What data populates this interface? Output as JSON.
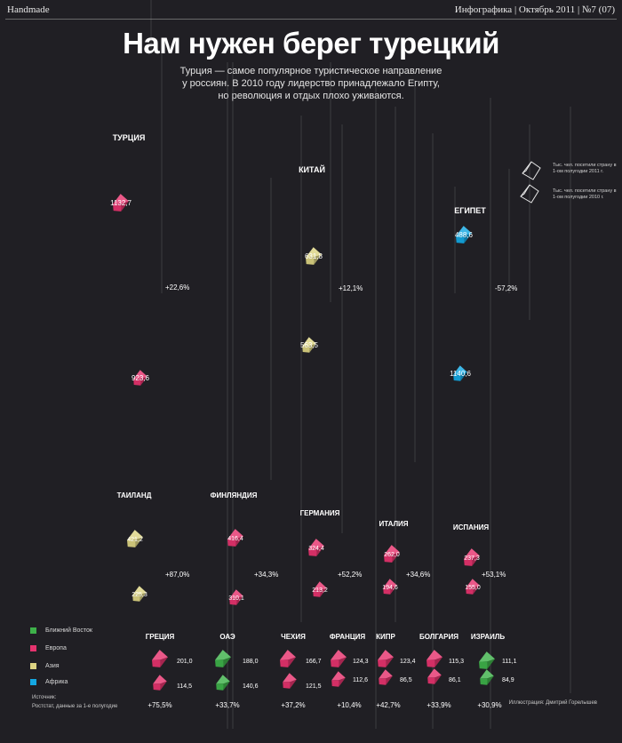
{
  "header": {
    "left": "Handmade",
    "right": "Инфографика | Октябрь 2011 | №7 (07)"
  },
  "title": "Нам нужен берег турецкий",
  "subtitle": "Турция — самое популярное туристическое направление у россиян. В 2010 году лидерство принадлежало Египту, но революция и отдых плохо уживаются.",
  "key": {
    "upper": "Тыс. чел. посетили страну в 1-ом полугодии 2011 г.",
    "lower": "Тыс. чел. посетили страну в 1-ом полугодии 2010 г."
  },
  "legend": [
    {
      "label": "Ближний Восток",
      "color": "#3eb14a"
    },
    {
      "label": "Европа",
      "color": "#e5336e"
    },
    {
      "label": "Азия",
      "color": "#dcd382"
    },
    {
      "label": "Африка",
      "color": "#14a7e2"
    }
  ],
  "source": {
    "label": "Источник:",
    "text": "Ростстат, данные за 1-е полугодие"
  },
  "credit": "Иллюстрация: Дмитрий Горелышев",
  "chart_data": {
    "type": "bar",
    "title": "Нам нужен берег турецкий",
    "unit": "тыс. чел.",
    "series_names": [
      "1-е полугодие 2011 г.",
      "1-е полугодие 2010 г."
    ],
    "categories": [
      {
        "name": "ТУРЦИЯ",
        "region": "Европа",
        "v2011": "1132,7",
        "v2010": "923,6",
        "change": "+22,6%"
      },
      {
        "name": "КИТАЙ",
        "region": "Азия",
        "v2011": "631,8",
        "v2010": "563,5",
        "change": "+12,1%"
      },
      {
        "name": "ЕГИПЕТ",
        "region": "Африка",
        "v2011": "488,6",
        "v2010": "1140,6",
        "change": "-57,2%"
      },
      {
        "name": "ТАИЛАНД",
        "region": "Азия",
        "v2011": "421,2",
        "v2010": "225,3",
        "change": "+87,0%"
      },
      {
        "name": "ФИНЛЯНДИЯ",
        "region": "Европа",
        "v2011": "416,4",
        "v2010": "310,1",
        "change": "+34,3%"
      },
      {
        "name": "ГЕРМАНИЯ",
        "region": "Европа",
        "v2011": "324,4",
        "v2010": "213,2",
        "change": "+52,2%"
      },
      {
        "name": "ИТАЛИЯ",
        "region": "Европа",
        "v2011": "262,0",
        "v2010": "194,6",
        "change": "+34,6%"
      },
      {
        "name": "ИСПАНИЯ",
        "region": "Европа",
        "v2011": "237,3",
        "v2010": "155,0",
        "change": "+53,1%"
      },
      {
        "name": "ГРЕЦИЯ",
        "region": "Европа",
        "v2011": "201,0",
        "v2010": "114,5",
        "change": "+75,5%"
      },
      {
        "name": "ОАЭ",
        "region": "Ближний Восток",
        "v2011": "188,0",
        "v2010": "140,6",
        "change": "+33,7%"
      },
      {
        "name": "ЧЕХИЯ",
        "region": "Европа",
        "v2011": "166,7",
        "v2010": "121,5",
        "change": "+37,2%"
      },
      {
        "name": "ФРАНЦИЯ",
        "region": "Европа",
        "v2011": "124,3",
        "v2010": "112,6",
        "change": "+10,4%"
      },
      {
        "name": "КИПР",
        "region": "Европа",
        "v2011": "123,4",
        "v2010": "86,5",
        "change": "+42,7%"
      },
      {
        "name": "БОЛГАРИЯ",
        "region": "Европа",
        "v2011": "115,3",
        "v2010": "86,1",
        "change": "+33,9%"
      },
      {
        "name": "ИЗРАИЛЬ",
        "region": "Ближний Восток",
        "v2011": "111,1",
        "v2010": "84,9",
        "change": "+30,9%"
      }
    ]
  }
}
